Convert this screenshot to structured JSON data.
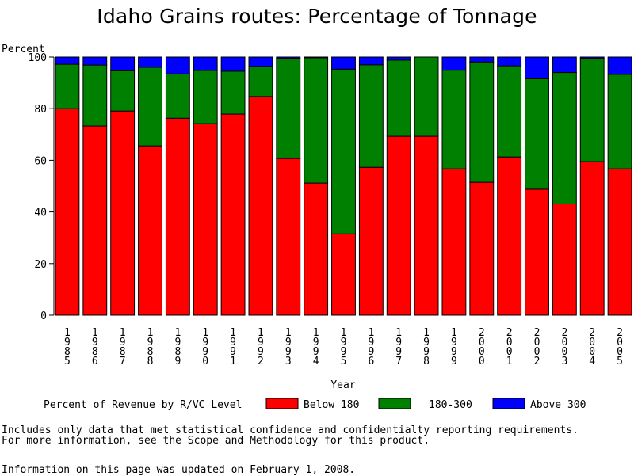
{
  "chart_data": {
    "type": "bar",
    "stacked": true,
    "title": "Idaho Grains routes: Percentage of Tonnage",
    "ylabel": "Percent",
    "xlabel": "Year",
    "ylim": [
      0,
      100
    ],
    "yticks": [
      0,
      20,
      40,
      60,
      80,
      100
    ],
    "categories": [
      "1985",
      "1986",
      "1987",
      "1988",
      "1989",
      "1990",
      "1991",
      "1992",
      "1993",
      "1994",
      "1995",
      "1996",
      "1997",
      "1998",
      "1999",
      "2000",
      "2001",
      "2002",
      "2003",
      "2004",
      "2005"
    ],
    "legend_title": "Percent of Revenue by R/VC Level",
    "series": [
      {
        "name": "Below 180",
        "color": "#ff0000",
        "values": [
          80,
          73.3,
          79.1,
          65.6,
          76.3,
          74.2,
          77.9,
          84.7,
          60.7,
          51.2,
          31.5,
          57.3,
          69.3,
          69.3,
          56.7,
          51.5,
          61.3,
          48.8,
          43.1,
          59.5,
          56.7
        ]
      },
      {
        "name": "180-300",
        "color": "#008000",
        "values": [
          17.2,
          23.6,
          15.6,
          30.4,
          17.2,
          20.6,
          16.6,
          11.7,
          38.8,
          48.5,
          63.8,
          39.7,
          29.5,
          30.7,
          38.2,
          46.6,
          35.3,
          42.8,
          50.9,
          40.0,
          36.6
        ]
      },
      {
        "name": "Above 300",
        "color": "#0000ff",
        "values": [
          2.8,
          3.1,
          5.3,
          4.0,
          6.5,
          5.2,
          5.5,
          3.6,
          0.5,
          0.3,
          4.7,
          3.0,
          1.2,
          0.0,
          5.1,
          1.9,
          3.4,
          8.4,
          6.0,
          0.5,
          6.7
        ]
      }
    ]
  },
  "notes": {
    "line1": "Includes only data that met statistical confidence and confidentialty reporting requirements.",
    "line2": "For more information, see the Scope and Methodology for this product.",
    "line3": "Information on this page was updated on February 1, 2008."
  },
  "colors": {
    "axis": "#000000",
    "background": "#ffffff"
  }
}
